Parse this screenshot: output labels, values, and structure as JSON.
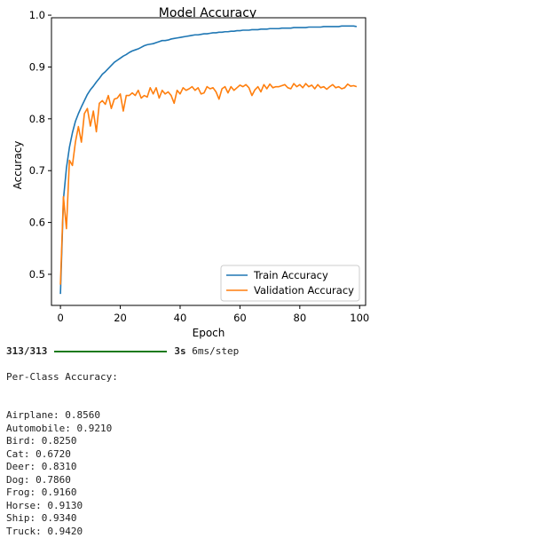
{
  "chart_data": {
    "type": "line",
    "title": "Model Accuracy",
    "xlabel": "Epoch",
    "ylabel": "Accuracy",
    "xlim": [
      -3,
      102
    ],
    "ylim": [
      0.44,
      0.995
    ],
    "xticks": [
      0,
      20,
      40,
      60,
      80,
      100
    ],
    "yticks": [
      0.5,
      0.6,
      0.7,
      0.8,
      0.9,
      1.0
    ],
    "ytick_labels": [
      "0.5",
      "0.6",
      "0.7",
      "0.8",
      "0.9",
      "1.0"
    ],
    "legend_position": "lower-right",
    "grid": false,
    "series": [
      {
        "name": "Train Accuracy",
        "color": "#1f77b4",
        "x": [
          0,
          1,
          2,
          3,
          4,
          5,
          6,
          7,
          8,
          9,
          10,
          11,
          12,
          13,
          14,
          15,
          16,
          17,
          18,
          19,
          20,
          21,
          22,
          23,
          24,
          25,
          26,
          27,
          28,
          29,
          30,
          31,
          32,
          33,
          34,
          35,
          36,
          37,
          38,
          39,
          40,
          41,
          42,
          43,
          44,
          45,
          46,
          47,
          48,
          49,
          50,
          51,
          52,
          53,
          54,
          55,
          56,
          57,
          58,
          59,
          60,
          61,
          62,
          63,
          64,
          65,
          66,
          67,
          68,
          69,
          70,
          71,
          72,
          73,
          74,
          75,
          76,
          77,
          78,
          79,
          80,
          81,
          82,
          83,
          84,
          85,
          86,
          87,
          88,
          89,
          90,
          91,
          92,
          93,
          94,
          95,
          96,
          97,
          98,
          99
        ],
        "values": [
          0.462,
          0.645,
          0.705,
          0.745,
          0.773,
          0.795,
          0.81,
          0.823,
          0.835,
          0.847,
          0.856,
          0.863,
          0.871,
          0.878,
          0.886,
          0.891,
          0.897,
          0.903,
          0.909,
          0.913,
          0.917,
          0.921,
          0.924,
          0.928,
          0.931,
          0.933,
          0.935,
          0.938,
          0.941,
          0.943,
          0.944,
          0.945,
          0.947,
          0.949,
          0.951,
          0.951,
          0.952,
          0.954,
          0.955,
          0.956,
          0.957,
          0.958,
          0.959,
          0.96,
          0.961,
          0.962,
          0.962,
          0.963,
          0.964,
          0.964,
          0.965,
          0.966,
          0.966,
          0.967,
          0.967,
          0.968,
          0.968,
          0.969,
          0.969,
          0.97,
          0.97,
          0.971,
          0.971,
          0.971,
          0.972,
          0.972,
          0.972,
          0.973,
          0.973,
          0.973,
          0.974,
          0.974,
          0.974,
          0.974,
          0.975,
          0.975,
          0.975,
          0.975,
          0.976,
          0.976,
          0.976,
          0.976,
          0.976,
          0.977,
          0.977,
          0.977,
          0.977,
          0.977,
          0.978,
          0.978,
          0.978,
          0.978,
          0.978,
          0.978,
          0.979,
          0.979,
          0.979,
          0.979,
          0.979,
          0.978
        ]
      },
      {
        "name": "Validation Accuracy",
        "color": "#ff7f0e",
        "x": [
          0,
          1,
          2,
          3,
          4,
          5,
          6,
          7,
          8,
          9,
          10,
          11,
          12,
          13,
          14,
          15,
          16,
          17,
          18,
          19,
          20,
          21,
          22,
          23,
          24,
          25,
          26,
          27,
          28,
          29,
          30,
          31,
          32,
          33,
          34,
          35,
          36,
          37,
          38,
          39,
          40,
          41,
          42,
          43,
          44,
          45,
          46,
          47,
          48,
          49,
          50,
          51,
          52,
          53,
          54,
          55,
          56,
          57,
          58,
          59,
          60,
          61,
          62,
          63,
          64,
          65,
          66,
          67,
          68,
          69,
          70,
          71,
          72,
          73,
          74,
          75,
          76,
          77,
          78,
          79,
          80,
          81,
          82,
          83,
          84,
          85,
          86,
          87,
          88,
          89,
          90,
          91,
          92,
          93,
          94,
          95,
          96,
          97,
          98,
          99
        ],
        "values": [
          0.48,
          0.65,
          0.588,
          0.72,
          0.71,
          0.755,
          0.785,
          0.755,
          0.81,
          0.82,
          0.786,
          0.815,
          0.775,
          0.83,
          0.835,
          0.828,
          0.845,
          0.82,
          0.838,
          0.84,
          0.848,
          0.815,
          0.845,
          0.845,
          0.85,
          0.845,
          0.855,
          0.84,
          0.845,
          0.842,
          0.86,
          0.848,
          0.86,
          0.84,
          0.855,
          0.848,
          0.852,
          0.845,
          0.83,
          0.855,
          0.848,
          0.86,
          0.855,
          0.858,
          0.862,
          0.855,
          0.86,
          0.848,
          0.85,
          0.862,
          0.858,
          0.86,
          0.852,
          0.838,
          0.858,
          0.862,
          0.85,
          0.862,
          0.855,
          0.86,
          0.865,
          0.862,
          0.866,
          0.86,
          0.845,
          0.856,
          0.862,
          0.852,
          0.866,
          0.858,
          0.867,
          0.86,
          0.862,
          0.862,
          0.864,
          0.866,
          0.86,
          0.858,
          0.868,
          0.862,
          0.866,
          0.86,
          0.868,
          0.862,
          0.865,
          0.858,
          0.866,
          0.86,
          0.862,
          0.857,
          0.862,
          0.866,
          0.86,
          0.862,
          0.858,
          0.86,
          0.867,
          0.863,
          0.864,
          0.862
        ]
      }
    ]
  },
  "console": {
    "progress_steps": "313/313",
    "progress_fraction": 1.0,
    "progress_time": "3s",
    "progress_rate": "6ms/step",
    "per_class_title": "Per-Class Accuracy:",
    "per_class": [
      "Airplane: 0.8560",
      "Automobile: 0.9210",
      "Bird: 0.8250",
      "Cat: 0.6720",
      "Deer: 0.8310",
      "Dog: 0.7860",
      "Frog: 0.9160",
      "Horse: 0.9130",
      "Ship: 0.9340",
      "Truck: 0.9420"
    ]
  }
}
